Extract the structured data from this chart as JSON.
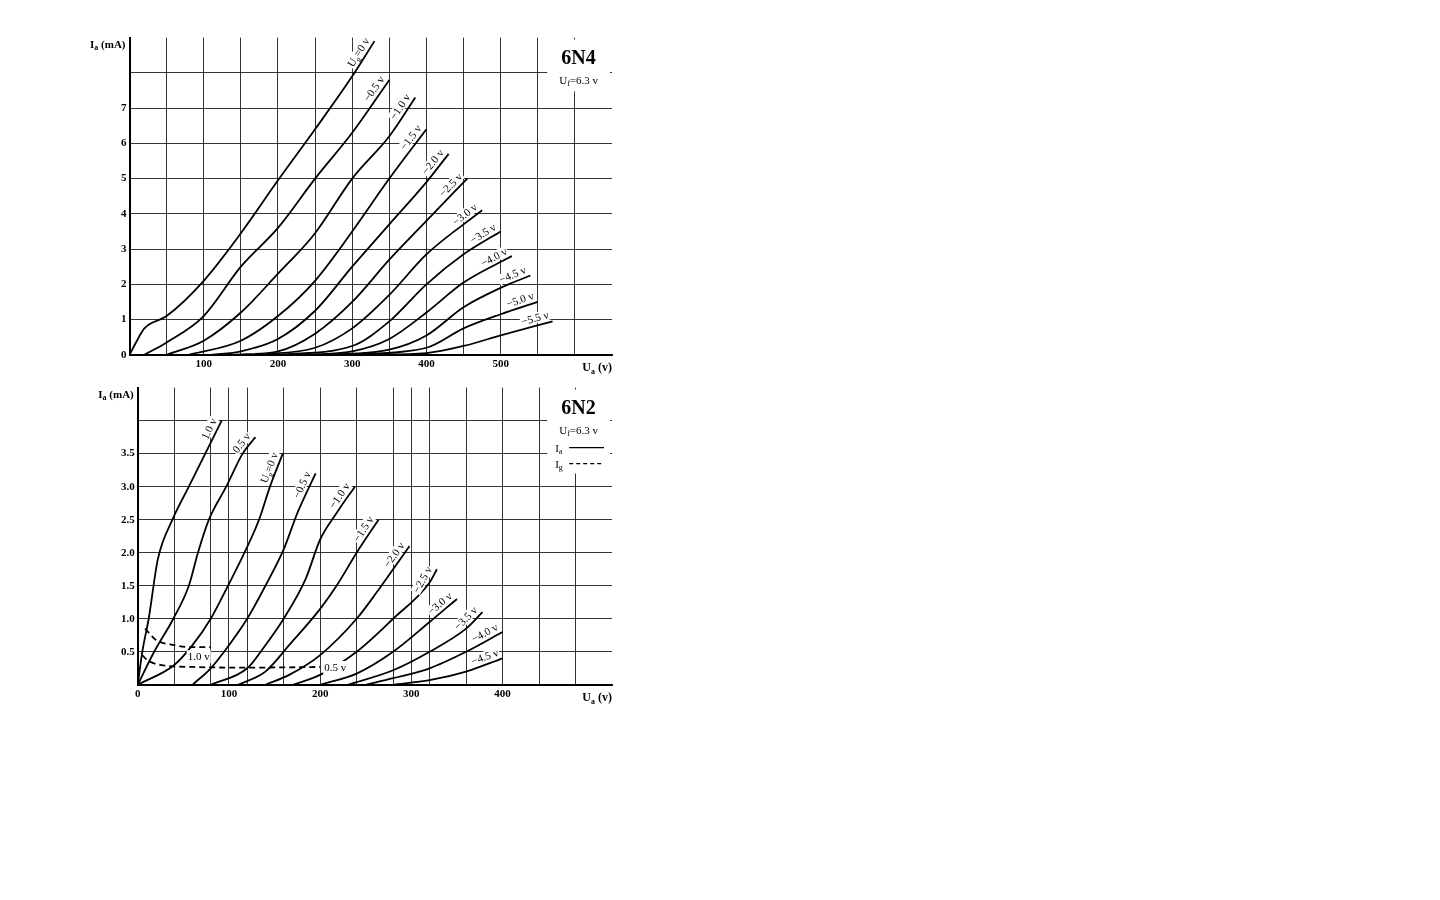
{
  "chart_data": [
    {
      "type": "line",
      "title": "6N4",
      "subtitle": "U$_{f}$=6.3 v",
      "xlabel": "U$_{a}$ (v)",
      "ylabel": "I$_{a}$ (mA)",
      "xlim": [
        0,
        650
      ],
      "ylim": [
        0,
        9
      ],
      "xticks": [
        {
          "value": 0,
          "label": null
        },
        {
          "value": 50,
          "label": null
        },
        100,
        {
          "value": 150,
          "label": null
        },
        200,
        {
          "value": 250,
          "label": null
        },
        300,
        {
          "value": 350,
          "label": null
        },
        400,
        {
          "value": 450,
          "label": null
        },
        500,
        {
          "value": 550,
          "label": null
        },
        {
          "value": 600,
          "label": null
        }
      ],
      "yticks": [
        0,
        1,
        2,
        3,
        4,
        5,
        6,
        7,
        {
          "value": 8,
          "label": null
        }
      ],
      "grid": true,
      "line_style": "solid",
      "marker": "none",
      "series": [
        {
          "name": "U$_{g}$=0 v",
          "color": "#000000",
          "x": [
            0,
            10,
            20,
            50,
            100,
            150,
            200,
            250,
            300,
            330
          ],
          "values": [
            0,
            0.4,
            0.75,
            1.1,
            2.1,
            3.45,
            4.95,
            6.4,
            7.9,
            8.9
          ]
        },
        {
          "name": "−0.5 v",
          "color": "#000000",
          "x": [
            20,
            50,
            100,
            150,
            200,
            250,
            300,
            350
          ],
          "values": [
            0,
            0.35,
            1.1,
            2.5,
            3.6,
            5.0,
            6.3,
            7.8
          ]
        },
        {
          "name": "−1.0 v",
          "color": "#000000",
          "x": [
            50,
            100,
            150,
            200,
            250,
            300,
            350,
            385
          ],
          "values": [
            0,
            0.4,
            1.2,
            2.3,
            3.45,
            5.0,
            6.2,
            7.3
          ]
        },
        {
          "name": "−1.5 v",
          "color": "#000000",
          "x": [
            80,
            150,
            200,
            250,
            300,
            350,
            400
          ],
          "values": [
            0,
            0.4,
            1.1,
            2.1,
            3.5,
            5.0,
            6.4
          ]
        },
        {
          "name": "−2.0 v",
          "color": "#000000",
          "x": [
            110,
            150,
            200,
            250,
            300,
            350,
            400,
            430
          ],
          "values": [
            0,
            0.1,
            0.45,
            1.25,
            2.5,
            3.7,
            4.9,
            5.7
          ]
        },
        {
          "name": "−2.5 v",
          "color": "#000000",
          "x": [
            140,
            200,
            250,
            300,
            350,
            400,
            455
          ],
          "values": [
            0,
            0.1,
            0.6,
            1.5,
            2.7,
            3.8,
            5.0
          ]
        },
        {
          "name": "−3.0 v",
          "color": "#000000",
          "x": [
            170,
            250,
            300,
            350,
            400,
            475
          ],
          "values": [
            0,
            0.2,
            0.75,
            1.7,
            2.85,
            4.1
          ]
        },
        {
          "name": "−3.5 v",
          "color": "#000000",
          "x": [
            200,
            300,
            350,
            400,
            450,
            500
          ],
          "values": [
            0,
            0.25,
            0.95,
            2.0,
            2.85,
            3.5
          ]
        },
        {
          "name": "−4.0 v",
          "color": "#000000",
          "x": [
            230,
            300,
            350,
            400,
            450,
            515
          ],
          "values": [
            0,
            0.1,
            0.45,
            1.2,
            2.05,
            2.8
          ]
        },
        {
          "name": "−4.5 v",
          "color": "#000000",
          "x": [
            260,
            350,
            400,
            450,
            500,
            540
          ],
          "values": [
            0,
            0.15,
            0.55,
            1.35,
            1.9,
            2.25
          ]
        },
        {
          "name": "−5.0 v",
          "color": "#000000",
          "x": [
            290,
            400,
            450,
            500,
            550
          ],
          "values": [
            0,
            0.2,
            0.75,
            1.15,
            1.5
          ]
        },
        {
          "name": "−5.5 v",
          "color": "#000000",
          "x": [
            320,
            400,
            450,
            500,
            570
          ],
          "values": [
            0,
            0.05,
            0.25,
            0.55,
            0.95
          ]
        }
      ]
    },
    {
      "type": "line",
      "title": "6N2",
      "subtitle": "U$_{f}$=6.3 v",
      "xlabel": "U$_{a}$ (v)",
      "ylabel": "I$_{a}$ (mA)",
      "xlim": [
        0,
        520
      ],
      "ylim": [
        0,
        4.5
      ],
      "xticks": [
        0,
        {
          "value": 40,
          "label": null
        },
        {
          "value": 80,
          "label": null
        },
        100,
        {
          "value": 120,
          "label": null
        },
        {
          "value": 160,
          "label": null
        },
        200,
        {
          "value": 240,
          "label": null
        },
        {
          "value": 280,
          "label": null
        },
        300,
        {
          "value": 320,
          "label": null
        },
        {
          "value": 360,
          "label": null
        },
        400,
        {
          "value": 440,
          "label": null
        },
        {
          "value": 480,
          "label": null
        }
      ],
      "yticks": [
        {
          "value": 0,
          "label": null
        },
        0.5,
        {
          "value": 1,
          "label": "1.0"
        },
        1.5,
        {
          "value": 2,
          "label": "2.0"
        },
        2.5,
        {
          "value": 3,
          "label": "3.0"
        },
        3.5,
        {
          "value": 4,
          "label": null
        }
      ],
      "grid": true,
      "line_style": "solid",
      "marker": "none",
      "annotations": [
        "I$_{a}$",
        "I$_{g}$"
      ],
      "series": [
        {
          "name": "1.0 v",
          "color": "#000000",
          "x": [
            0,
            5,
            12,
            22,
            38,
            56,
            74,
            92
          ],
          "values": [
            0,
            0.5,
            1.0,
            1.9,
            2.5,
            3.0,
            3.5,
            4.0
          ]
        },
        {
          "name": "0.5 v",
          "color": "#000000",
          "x": [
            0,
            18,
            39,
            56,
            66,
            78,
            97,
            115,
            129
          ],
          "values": [
            0,
            0.5,
            1.0,
            1.5,
            2.0,
            2.5,
            3.0,
            3.5,
            3.75
          ]
        },
        {
          "name": "U$_{g}$=0 v",
          "color": "#000000",
          "x": [
            0,
            40,
            60,
            80,
            99,
            117,
            133,
            145,
            159
          ],
          "values": [
            0,
            0.3,
            0.6,
            1.0,
            1.5,
            2.0,
            2.5,
            3.0,
            3.5
          ]
        },
        {
          "name": "−0.5 v",
          "color": "#000000",
          "x": [
            60,
            80,
            100,
            120,
            140,
            160,
            175,
            195
          ],
          "values": [
            0,
            0.25,
            0.6,
            1.0,
            1.5,
            2.05,
            2.6,
            3.2
          ]
        },
        {
          "name": "−1.0 v",
          "color": "#000000",
          "x": [
            80,
            120,
            140,
            160,
            184,
            200,
            218,
            238
          ],
          "values": [
            0,
            0.25,
            0.6,
            1.0,
            1.6,
            2.2,
            2.6,
            3.0
          ]
        },
        {
          "name": "−1.5 v",
          "color": "#000000",
          "x": [
            110,
            140,
            166,
            200,
            218,
            240,
            264
          ],
          "values": [
            0,
            0.2,
            0.6,
            1.15,
            1.5,
            2.0,
            2.5
          ]
        },
        {
          "name": "−2.0 v",
          "color": "#000000",
          "x": [
            140,
            166,
            200,
            240,
            262,
            280,
            298
          ],
          "values": [
            0,
            0.15,
            0.45,
            1.0,
            1.4,
            1.75,
            2.1
          ]
        },
        {
          "name": "−2.5 v",
          "color": "#000000",
          "x": [
            170,
            200,
            240,
            280,
            320,
            328
          ],
          "values": [
            0,
            0.15,
            0.5,
            1.0,
            1.55,
            1.75
          ]
        },
        {
          "name": "−3.0 v",
          "color": "#000000",
          "x": [
            200,
            240,
            280,
            320,
            350
          ],
          "values": [
            0,
            0.17,
            0.5,
            0.95,
            1.3
          ]
        },
        {
          "name": "−3.5 v",
          "color": "#000000",
          "x": [
            230,
            280,
            320,
            360,
            378
          ],
          "values": [
            0,
            0.22,
            0.5,
            0.85,
            1.1
          ]
        },
        {
          "name": "−4.0 v",
          "color": "#000000",
          "x": [
            250,
            280,
            320,
            360,
            400
          ],
          "values": [
            0,
            0.1,
            0.25,
            0.5,
            0.8
          ]
        },
        {
          "name": "−4.5 v",
          "color": "#000000",
          "x": [
            280,
            320,
            360,
            400
          ],
          "values": [
            0,
            0.07,
            0.2,
            0.4
          ]
        },
        {
          "name": "1.0 v",
          "color": "#000000",
          "line_style": "dashed",
          "x": [
            8,
            20,
            40,
            60,
            80
          ],
          "values": [
            0.85,
            0.68,
            0.6,
            0.57,
            0.57
          ]
        },
        {
          "name": "0.5 v",
          "color": "#000000",
          "line_style": "dashed",
          "x": [
            5,
            10,
            25,
            60,
            120,
            200
          ],
          "values": [
            0.45,
            0.38,
            0.3,
            0.27,
            0.26,
            0.27
          ]
        }
      ]
    }
  ]
}
